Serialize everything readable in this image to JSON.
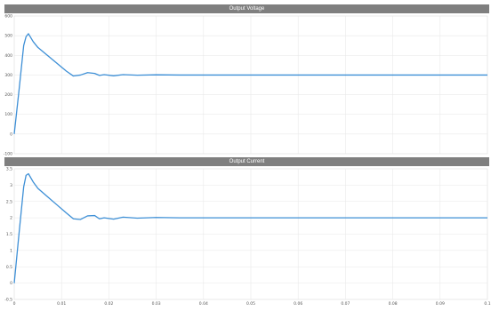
{
  "panels": [
    {
      "title": "Output Voltage"
    },
    {
      "title": "Output Current"
    }
  ],
  "colors": {
    "trace": "#3d8fd6",
    "title_bar": "#7f7f7f",
    "grid": "#e9e9e9",
    "axis_text": "#555555"
  },
  "chart_data": [
    {
      "type": "line",
      "title": "Output Voltage",
      "xlabel": "",
      "ylabel": "",
      "xlim": [
        0,
        0.1
      ],
      "ylim": [
        -100,
        600
      ],
      "yticks": [
        "600",
        "500",
        "400",
        "300",
        "200",
        "100",
        "0",
        "-100"
      ],
      "xticks": [],
      "grid": true,
      "series": [
        {
          "x": [
            0,
            0.001,
            0.002,
            0.0025,
            0.003,
            0.004,
            0.005,
            0.007,
            0.009,
            0.011,
            0.0125,
            0.014,
            0.0155,
            0.017,
            0.018,
            0.019,
            0.021,
            0.023,
            0.026,
            0.03,
            0.035,
            0.04,
            0.05,
            0.06,
            0.07,
            0.08,
            0.09,
            0.1
          ],
          "y": [
            0,
            220,
            450,
            495,
            510,
            470,
            440,
            400,
            360,
            320,
            295,
            300,
            312,
            308,
            298,
            302,
            296,
            302,
            299,
            301,
            300,
            300,
            300,
            300,
            300,
            300,
            300,
            300
          ]
        }
      ]
    },
    {
      "type": "line",
      "title": "Output Current",
      "xlabel": "",
      "ylabel": "",
      "xlim": [
        0,
        0.1
      ],
      "ylim": [
        -0.5,
        3.5
      ],
      "yticks": [
        "3.5",
        "3",
        "2.5",
        "2",
        "1.5",
        "1",
        "0.5",
        "0",
        "-0.5"
      ],
      "xticks": [
        "0",
        "0.01",
        "0.02",
        "0.03",
        "0.04",
        "0.05",
        "0.06",
        "0.07",
        "0.08",
        "0.09",
        "0.1"
      ],
      "grid": true,
      "series": [
        {
          "x": [
            0,
            0.001,
            0.002,
            0.0025,
            0.003,
            0.004,
            0.005,
            0.007,
            0.009,
            0.011,
            0.0125,
            0.014,
            0.0155,
            0.017,
            0.018,
            0.019,
            0.021,
            0.023,
            0.026,
            0.03,
            0.035,
            0.04,
            0.05,
            0.06,
            0.07,
            0.08,
            0.09,
            0.1
          ],
          "y": [
            0,
            1.5,
            2.95,
            3.3,
            3.35,
            3.1,
            2.9,
            2.65,
            2.4,
            2.15,
            1.97,
            1.95,
            2.06,
            2.07,
            1.97,
            2.0,
            1.96,
            2.02,
            1.99,
            2.01,
            2.0,
            2.0,
            2.0,
            2.0,
            2.0,
            2.0,
            2.0,
            2.0
          ]
        }
      ]
    }
  ]
}
